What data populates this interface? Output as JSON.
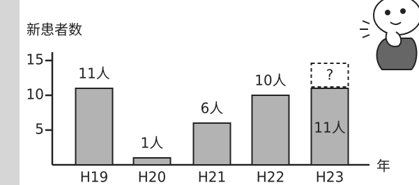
{
  "chart_data": {
    "type": "bar",
    "y_label": "新患者数",
    "x_label": "年",
    "categories": [
      "H19",
      "H20",
      "H21",
      "H22",
      "H23"
    ],
    "values": [
      11,
      1,
      6,
      10,
      11
    ],
    "value_labels": [
      "11人",
      "1人",
      "6人",
      "10人",
      "11人"
    ],
    "annotation": "?",
    "color": "#b3b3b3",
    "ylim": [
      0,
      16.2
    ],
    "yticks": [
      5,
      10,
      15
    ]
  }
}
